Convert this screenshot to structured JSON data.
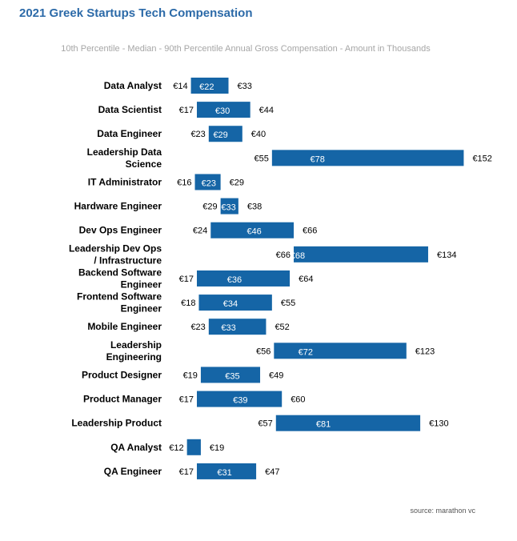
{
  "chart_data": {
    "type": "bar",
    "orientation": "horizontal-floating-range",
    "title": "2021 Greek Startups Tech Compensation",
    "subtitle": "10th Percentile - Median - 90th Percentile Annual Gross Compensation - Amount in Thousands",
    "source": "source: marathon vc",
    "color": "#1565a6",
    "currency_prefix": "€",
    "categories": [
      [
        "Data Analyst"
      ],
      [
        "Data Scientist"
      ],
      [
        "Data Engineer"
      ],
      [
        "Leadership Data",
        "Science"
      ],
      [
        "IT Administrator"
      ],
      [
        "Hardware Engineer"
      ],
      [
        "Dev Ops Engineer"
      ],
      [
        "Leadership Dev Ops",
        "/ Infrastructure"
      ],
      [
        "Backend Software",
        "Engineer"
      ],
      [
        "Frontend Software",
        "Engineer"
      ],
      [
        "Mobile Engineer"
      ],
      [
        "Leadership",
        "Engineering"
      ],
      [
        "Product Designer"
      ],
      [
        "Product Manager"
      ],
      [
        "Leadership Product"
      ],
      [
        "QA Analyst"
      ],
      [
        "QA Engineer"
      ]
    ],
    "p10": [
      14,
      17,
      23,
      55,
      16,
      29,
      24,
      66,
      17,
      18,
      23,
      56,
      19,
      17,
      57,
      12,
      17
    ],
    "median": [
      22,
      30,
      29,
      78,
      23,
      33,
      46,
      68,
      36,
      34,
      33,
      72,
      35,
      39,
      81,
      null,
      31
    ],
    "p90": [
      33,
      44,
      40,
      152,
      29,
      38,
      66,
      134,
      64,
      55,
      52,
      123,
      49,
      60,
      130,
      19,
      47
    ],
    "xlim": [
      0,
      152
    ]
  }
}
